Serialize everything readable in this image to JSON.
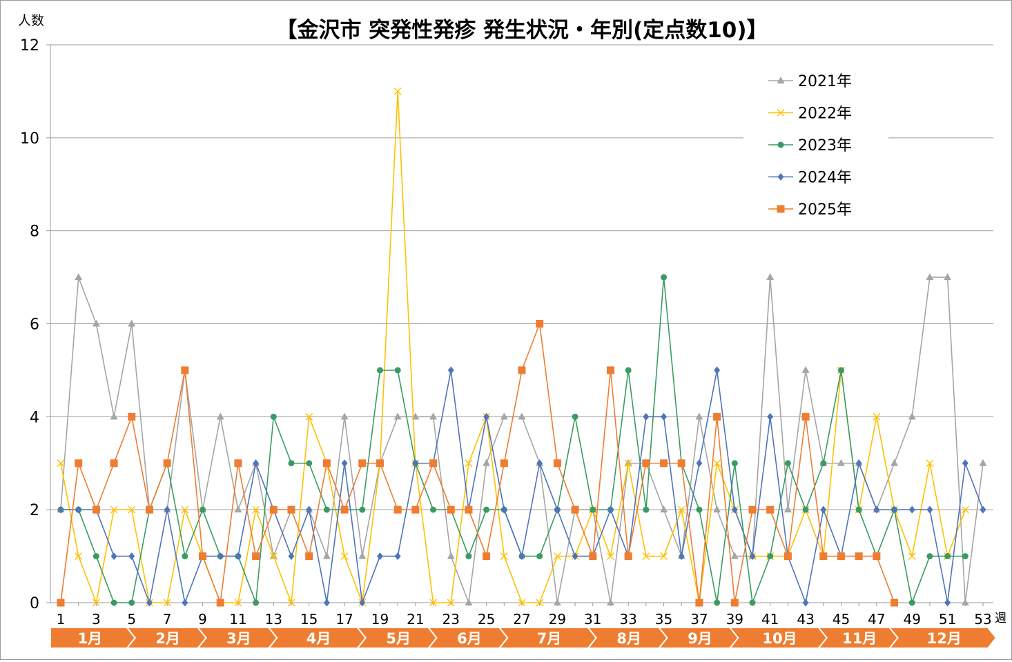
{
  "chart_data": {
    "type": "line",
    "title": "【金沢市 突発性発疹 発生状況・年別(定点数10)】",
    "ylabel": "人数",
    "xlabel": "週",
    "ylim": [
      0,
      12
    ],
    "yticks": [
      0,
      2,
      4,
      6,
      8,
      10,
      12
    ],
    "xlim": [
      1,
      53
    ],
    "xticks": [
      "1",
      "3",
      "5",
      "7",
      "9",
      "11",
      "13",
      "15",
      "17",
      "19",
      "21",
      "23",
      "25",
      "27",
      "29",
      "31",
      "33",
      "35",
      "37",
      "39",
      "41",
      "43",
      "45",
      "47",
      "49",
      "51",
      "53"
    ],
    "grid": true,
    "legend_position": "top-right",
    "months": [
      {
        "label": "1月",
        "start": 1,
        "end": 5
      },
      {
        "label": "2月",
        "start": 5,
        "end": 9
      },
      {
        "label": "3月",
        "start": 9,
        "end": 13
      },
      {
        "label": "4月",
        "start": 13,
        "end": 18
      },
      {
        "label": "5月",
        "start": 18,
        "end": 22
      },
      {
        "label": "6月",
        "start": 22,
        "end": 26
      },
      {
        "label": "7月",
        "start": 26,
        "end": 31
      },
      {
        "label": "8月",
        "start": 31,
        "end": 35
      },
      {
        "label": "9月",
        "start": 35,
        "end": 39
      },
      {
        "label": "10月",
        "start": 39,
        "end": 44
      },
      {
        "label": "11月",
        "start": 44,
        "end": 48
      },
      {
        "label": "12月",
        "start": 48,
        "end": 54
      }
    ],
    "month_color": "#ee7d31",
    "series": [
      {
        "name": "2021年",
        "color": "#a5a5a5",
        "marker": "triangle",
        "values": [
          2,
          7,
          6,
          4,
          6,
          2,
          2,
          5,
          2,
          4,
          2,
          3,
          1,
          2,
          2,
          1,
          4,
          1,
          3,
          4,
          4,
          4,
          1,
          0,
          3,
          4,
          4,
          3,
          0,
          2,
          2,
          0,
          3,
          3,
          2,
          1,
          4,
          2,
          1,
          1,
          7,
          2,
          5,
          3,
          3,
          3,
          2,
          3,
          4,
          7,
          7,
          0,
          3
        ]
      },
      {
        "name": "2022年",
        "color": "#ffc000",
        "marker": "x",
        "values": [
          3,
          1,
          0,
          2,
          2,
          0,
          0,
          2,
          1,
          0,
          0,
          2,
          1,
          0,
          4,
          3,
          1,
          0,
          3,
          11,
          3,
          0,
          0,
          3,
          4,
          1,
          0,
          0,
          1,
          1,
          2,
          1,
          3,
          1,
          1,
          2,
          0,
          3,
          2,
          1,
          1,
          1,
          2,
          1,
          5,
          2,
          4,
          2,
          1,
          3,
          1,
          2
        ]
      },
      {
        "name": "2023年",
        "color": "#3a9b62",
        "marker": "circle",
        "values": [
          2,
          2,
          1,
          0,
          0,
          2,
          3,
          1,
          2,
          1,
          1,
          0,
          4,
          3,
          3,
          2,
          2,
          2,
          5,
          5,
          3,
          2,
          2,
          1,
          2,
          2,
          1,
          1,
          2,
          4,
          2,
          2,
          5,
          2,
          7,
          3,
          2,
          0,
          3,
          0,
          1,
          3,
          2,
          3,
          5,
          2,
          1,
          2,
          0,
          1,
          1,
          1
        ]
      },
      {
        "name": "2024年",
        "color": "#4e74ba",
        "marker": "diamond",
        "values": [
          2,
          2,
          2,
          1,
          1,
          0,
          2,
          0,
          1,
          1,
          1,
          3,
          2,
          1,
          2,
          0,
          3,
          0,
          1,
          1,
          3,
          3,
          5,
          2,
          4,
          2,
          1,
          3,
          2,
          1,
          1,
          2,
          1,
          4,
          4,
          1,
          3,
          5,
          2,
          1,
          4,
          1,
          0,
          2,
          1,
          3,
          2,
          2,
          2,
          2,
          0,
          3,
          2
        ]
      },
      {
        "name": "2025年",
        "color": "#ee7d31",
        "marker": "square",
        "values": [
          0,
          3,
          2,
          3,
          4,
          2,
          3,
          5,
          1,
          0,
          3,
          1,
          2,
          2,
          1,
          3,
          2,
          3,
          3,
          2,
          2,
          3,
          2,
          2,
          1,
          3,
          5,
          6,
          3,
          2,
          1,
          5,
          1,
          3,
          3,
          3,
          0,
          4,
          0,
          2,
          2,
          1,
          4,
          1,
          1,
          1,
          1,
          0
        ]
      }
    ]
  }
}
